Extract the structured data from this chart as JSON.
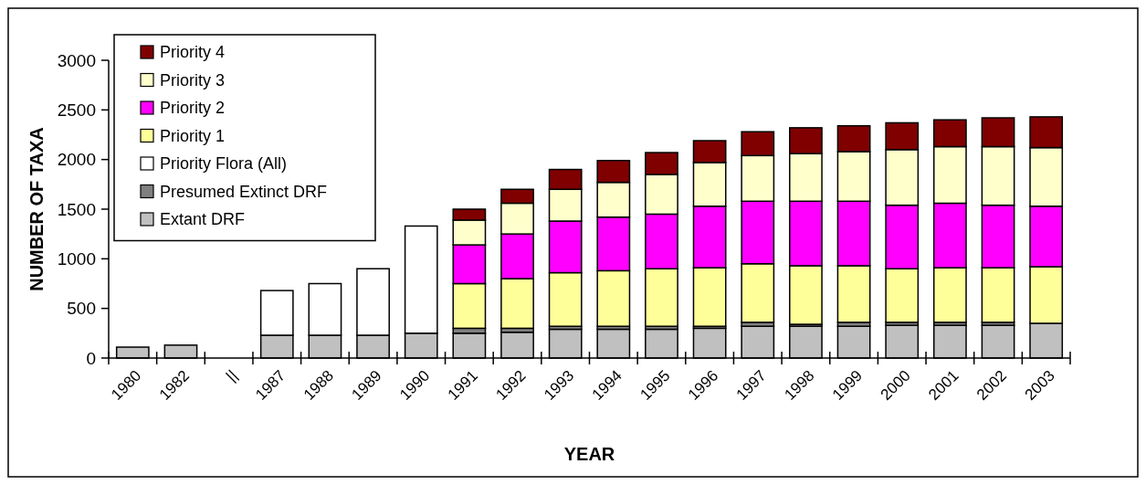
{
  "chart_data": {
    "type": "bar",
    "stacked": true,
    "xlabel": "YEAR",
    "ylabel": "NUMBER OF TAXA",
    "categories": [
      "1980",
      "1982",
      "||",
      "1987",
      "1988",
      "1989",
      "1990",
      "1991",
      "1992",
      "1993",
      "1994",
      "1995",
      "1996",
      "1997",
      "1998",
      "1999",
      "2000",
      "2001",
      "2002",
      "2003"
    ],
    "series": [
      {
        "name": "Extant DRF",
        "color": "#c0c0c0",
        "values": [
          110,
          130,
          null,
          230,
          230,
          230,
          250,
          250,
          260,
          290,
          290,
          290,
          300,
          320,
          320,
          320,
          330,
          330,
          330,
          350
        ]
      },
      {
        "name": "Presumed Extinct DRF",
        "color": "#808080",
        "values": [
          null,
          null,
          null,
          null,
          null,
          null,
          null,
          50,
          40,
          30,
          30,
          30,
          20,
          40,
          20,
          40,
          30,
          30,
          30,
          null
        ]
      },
      {
        "name": "Priority Flora (All)",
        "color": "#ffffff",
        "values": [
          null,
          null,
          null,
          450,
          520,
          670,
          1080,
          null,
          null,
          null,
          null,
          null,
          null,
          null,
          null,
          null,
          null,
          null,
          null,
          null
        ]
      },
      {
        "name": "Priority 1",
        "color": "#ffff99",
        "values": [
          null,
          null,
          null,
          null,
          null,
          null,
          null,
          450,
          500,
          540,
          560,
          580,
          590,
          590,
          590,
          570,
          540,
          550,
          550,
          570
        ]
      },
      {
        "name": "Priority 2",
        "color": "#ff00ff",
        "values": [
          null,
          null,
          null,
          null,
          null,
          null,
          null,
          390,
          450,
          520,
          540,
          550,
          620,
          630,
          650,
          650,
          640,
          650,
          630,
          610
        ]
      },
      {
        "name": "Priority 3",
        "color": "#ffffcc",
        "values": [
          null,
          null,
          null,
          null,
          null,
          null,
          null,
          250,
          310,
          320,
          350,
          400,
          440,
          460,
          480,
          500,
          560,
          570,
          590,
          590
        ]
      },
      {
        "name": "Priority 4",
        "color": "#800000",
        "values": [
          null,
          null,
          null,
          null,
          null,
          null,
          null,
          110,
          140,
          200,
          220,
          220,
          220,
          240,
          260,
          260,
          270,
          270,
          290,
          310
        ]
      }
    ],
    "ylim": [
      0,
      3000
    ],
    "yticks": [
      0,
      500,
      1000,
      1500,
      2000,
      2500,
      3000
    ],
    "legend": "top left"
  }
}
